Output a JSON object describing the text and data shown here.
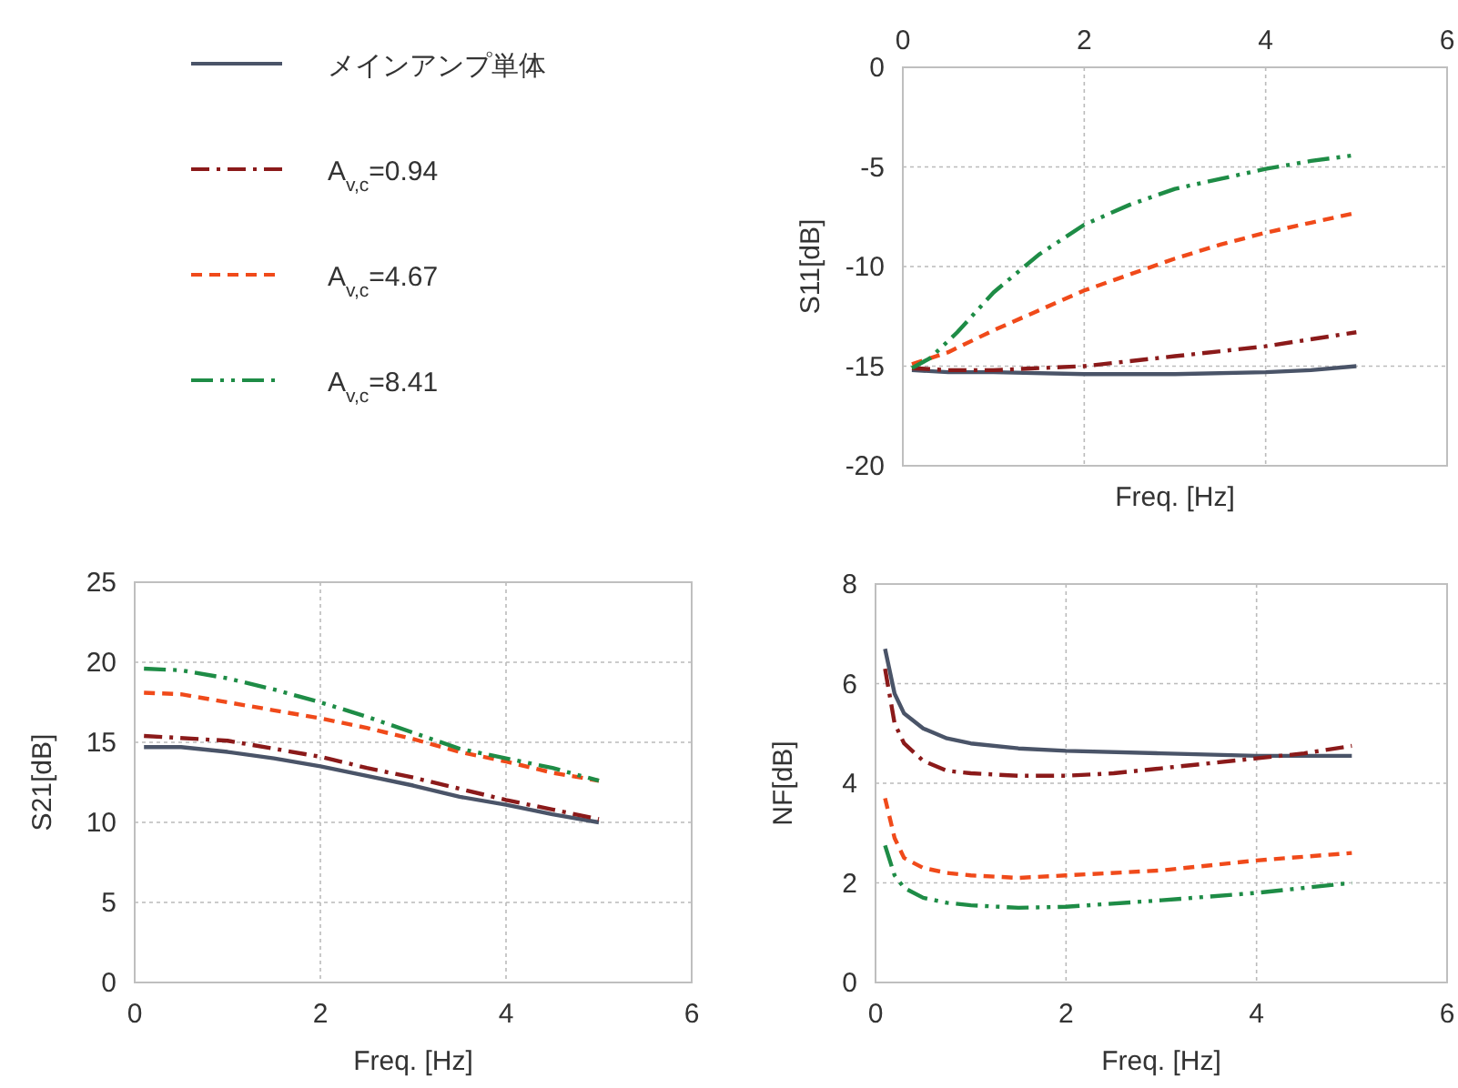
{
  "chart_data": [
    {
      "type": "line",
      "ylabel": "S11[dB]",
      "xlabel": "Freq. [Hz]",
      "xlim": [
        0,
        6
      ],
      "xticks": [
        0,
        2,
        4,
        6
      ],
      "ylim": [
        -20,
        0
      ],
      "yticks": [
        -20,
        -15,
        -10,
        -5,
        0
      ],
      "grid": true,
      "legend": "left",
      "series": [
        {
          "name": "メインアンプ単体",
          "color": "#4a5468",
          "line_style": "solid",
          "x": [
            0.1,
            0.5,
            1,
            2,
            3,
            4,
            4.5,
            5
          ],
          "values": [
            -15.2,
            -15.3,
            -15.3,
            -15.4,
            -15.4,
            -15.3,
            -15.2,
            -15.0
          ]
        },
        {
          "name": "A$_{v,c}$=0.94",
          "color": "#8b1a1a",
          "line_style": "dashdot",
          "x": [
            0.1,
            0.5,
            1,
            2,
            3,
            4,
            5
          ],
          "values": [
            -15.1,
            -15.2,
            -15.2,
            -15.0,
            -14.5,
            -14.0,
            -13.3
          ]
        },
        {
          "name": "A$_{v,c}$=4.67",
          "color": "#f04a1a",
          "line_style": "dashed",
          "x": [
            0.1,
            0.5,
            1,
            1.5,
            2,
            2.5,
            3,
            3.5,
            4,
            4.5,
            5
          ],
          "values": [
            -14.9,
            -14.3,
            -13.2,
            -12.2,
            -11.2,
            -10.4,
            -9.6,
            -8.9,
            -8.3,
            -7.8,
            -7.3
          ]
        },
        {
          "name": "A$_{v,c}$=8.41",
          "color": "#1e8c46",
          "line_style": "dashdotdot",
          "x": [
            0.1,
            0.3,
            0.6,
            1,
            1.5,
            2,
            2.5,
            3,
            3.5,
            4,
            4.5,
            5
          ],
          "values": [
            -15.1,
            -14.6,
            -13.3,
            -11.3,
            -9.4,
            -7.9,
            -6.9,
            -6.1,
            -5.6,
            -5.1,
            -4.7,
            -4.4
          ]
        }
      ]
    },
    {
      "type": "line",
      "ylabel": "S21[dB]",
      "xlabel": "Freq. [Hz]",
      "xlim": [
        0,
        6
      ],
      "xticks": [
        0,
        2,
        4,
        6
      ],
      "ylim": [
        0,
        25
      ],
      "yticks": [
        0,
        5,
        10,
        15,
        20,
        25
      ],
      "grid": true,
      "series": [
        {
          "color": "#4a5468",
          "line_style": "solid",
          "x": [
            0.1,
            0.5,
            1,
            1.5,
            2,
            2.5,
            3,
            3.5,
            4,
            4.5,
            5
          ],
          "values": [
            14.7,
            14.7,
            14.4,
            14.0,
            13.5,
            12.9,
            12.3,
            11.6,
            11.1,
            10.5,
            10.0
          ]
        },
        {
          "color": "#8b1a1a",
          "line_style": "dashdot",
          "x": [
            0.1,
            1,
            1.5,
            2,
            2.5,
            3,
            3.5,
            4,
            4.5,
            5
          ],
          "values": [
            15.4,
            15.1,
            14.6,
            14.1,
            13.4,
            12.8,
            12.1,
            11.4,
            10.8,
            10.2
          ]
        },
        {
          "color": "#f04a1a",
          "line_style": "dashed",
          "x": [
            0.1,
            0.5,
            1,
            1.5,
            2,
            2.5,
            3,
            3.5,
            4,
            4.5,
            5
          ],
          "values": [
            18.1,
            18.0,
            17.5,
            17.0,
            16.5,
            15.9,
            15.2,
            14.4,
            13.8,
            13.1,
            12.6
          ]
        },
        {
          "color": "#1e8c46",
          "line_style": "dashdotdot",
          "x": [
            0.1,
            0.5,
            1,
            1.5,
            2,
            2.5,
            3,
            3.5,
            4,
            4.5,
            5
          ],
          "values": [
            19.6,
            19.5,
            19.0,
            18.3,
            17.5,
            16.6,
            15.6,
            14.6,
            14.0,
            13.4,
            12.6
          ]
        }
      ]
    },
    {
      "type": "line",
      "ylabel": "NF[dB]",
      "xlabel": "Freq. [Hz]",
      "xlim": [
        0,
        6
      ],
      "xticks": [
        0,
        2,
        4,
        6
      ],
      "ylim": [
        0,
        8
      ],
      "yticks": [
        0,
        2,
        4,
        6,
        8
      ],
      "grid": true,
      "series": [
        {
          "color": "#4a5468",
          "line_style": "solid",
          "x": [
            0.1,
            0.2,
            0.3,
            0.5,
            0.75,
            1,
            1.5,
            2,
            3,
            4,
            5
          ],
          "values": [
            6.7,
            5.8,
            5.4,
            5.1,
            4.9,
            4.8,
            4.7,
            4.65,
            4.6,
            4.55,
            4.55
          ]
        },
        {
          "color": "#8b1a1a",
          "line_style": "dashdot",
          "x": [
            0.1,
            0.2,
            0.3,
            0.5,
            0.75,
            1,
            1.5,
            2,
            2.5,
            3,
            3.5,
            4,
            4.5,
            5
          ],
          "values": [
            6.3,
            5.2,
            4.8,
            4.45,
            4.25,
            4.2,
            4.15,
            4.15,
            4.2,
            4.3,
            4.4,
            4.5,
            4.6,
            4.75
          ]
        },
        {
          "color": "#f04a1a",
          "line_style": "dashed",
          "x": [
            0.1,
            0.2,
            0.3,
            0.5,
            0.75,
            1,
            1.5,
            2,
            3,
            4,
            5
          ],
          "values": [
            3.7,
            2.9,
            2.5,
            2.3,
            2.2,
            2.15,
            2.1,
            2.15,
            2.25,
            2.45,
            2.6
          ]
        },
        {
          "color": "#1e8c46",
          "line_style": "dashdotdot",
          "x": [
            0.1,
            0.2,
            0.3,
            0.5,
            0.75,
            1,
            1.5,
            2,
            3,
            4,
            5
          ],
          "values": [
            2.75,
            2.15,
            1.9,
            1.7,
            1.6,
            1.55,
            1.5,
            1.52,
            1.65,
            1.8,
            2.0
          ]
        }
      ]
    }
  ]
}
